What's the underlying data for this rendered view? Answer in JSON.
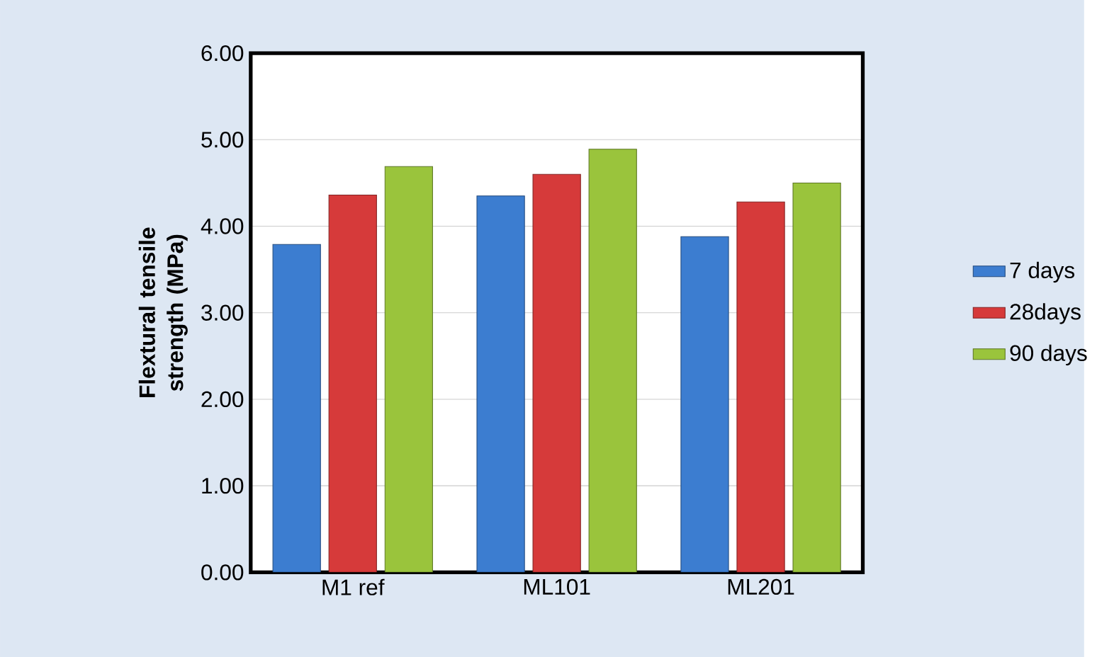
{
  "chart_data": {
    "type": "bar",
    "ylabel": "Flextural tensile strength (MPa)",
    "categories": [
      "M1 ref",
      "ML101",
      "ML201"
    ],
    "series": [
      {
        "name": "7 days",
        "color": "#3c7dd0",
        "values": [
          3.79,
          4.35,
          3.88
        ]
      },
      {
        "name": "28days",
        "color": "#d63a3a",
        "values": [
          4.36,
          4.6,
          4.28
        ]
      },
      {
        "name": "90 days",
        "color": "#9ac43c",
        "values": [
          4.69,
          4.89,
          4.5
        ]
      }
    ],
    "ylim": [
      0,
      6
    ],
    "yticks": [
      {
        "value": 0,
        "label": "0.00"
      },
      {
        "value": 1,
        "label": "1.00"
      },
      {
        "value": 2,
        "label": "2.00"
      },
      {
        "value": 3,
        "label": "3.00"
      },
      {
        "value": 4,
        "label": "4.00"
      },
      {
        "value": 5,
        "label": "5.00"
      },
      {
        "value": 6,
        "label": "6.00"
      }
    ],
    "grid": "y",
    "legend": "right"
  }
}
